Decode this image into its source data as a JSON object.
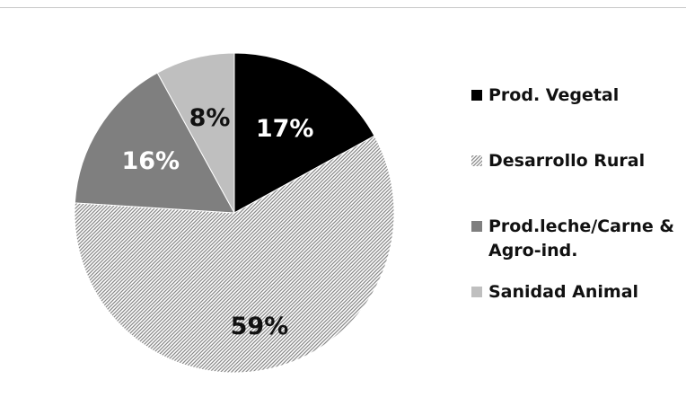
{
  "chart_data": {
    "type": "pie",
    "title": "",
    "legend_position": "right",
    "slices": [
      {
        "label": "Prod. Vegetal",
        "value": 17,
        "display": "17%",
        "color": "#000000",
        "pattern": "solid",
        "label_color": "#ffffff"
      },
      {
        "label": "Desarrollo Rural",
        "value": 59,
        "display": "59%",
        "color": "#8a8a8a",
        "pattern": "diagonal-hatch",
        "label_color": "#111111"
      },
      {
        "label": "Prod.leche/Carne & Agro-ind.",
        "value": 16,
        "display": "16%",
        "color": "#7f7f7f",
        "pattern": "solid",
        "label_color": "#ffffff"
      },
      {
        "label": "Sanidad Animal",
        "value": 8,
        "display": "8%",
        "color": "#bfbfbf",
        "pattern": "solid",
        "label_color": "#111111"
      }
    ]
  }
}
